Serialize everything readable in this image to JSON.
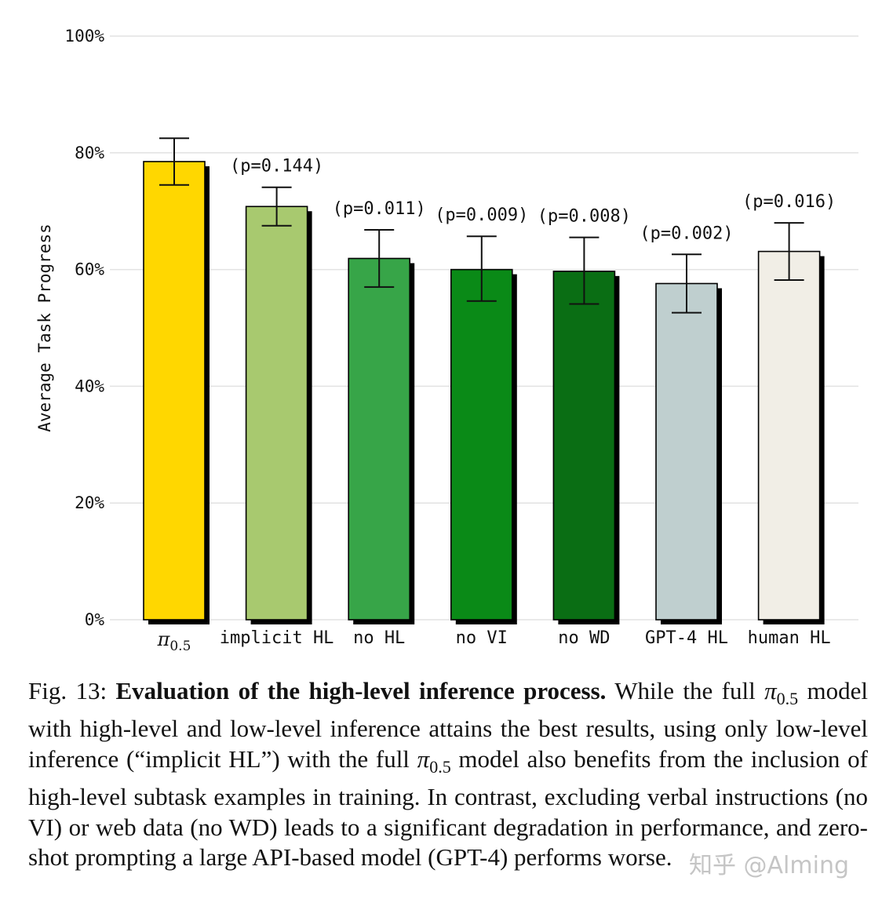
{
  "chart_data": {
    "type": "bar",
    "ylabel": "Average Task Progress",
    "ylim": [
      0,
      100
    ],
    "yticks": [
      "0%",
      "20%",
      "40%",
      "60%",
      "80%",
      "100%"
    ],
    "grid": true,
    "categories": [
      "π0.5",
      "implicit HL",
      "no HL",
      "no VI",
      "no WD",
      "GPT-4 HL",
      "human HL"
    ],
    "values": [
      78.5,
      70.8,
      61.9,
      60.0,
      59.7,
      57.6,
      63.1
    ],
    "error_low": [
      74.5,
      67.5,
      57.0,
      54.6,
      54.1,
      52.6,
      58.2
    ],
    "error_high": [
      82.5,
      74.1,
      66.8,
      65.7,
      65.5,
      62.6,
      68.0
    ],
    "annotations": [
      "",
      "(p=0.144)",
      "(p=0.011)",
      "(p=0.009)",
      "(p=0.008)",
      "(p=0.002)",
      "(p=0.016)"
    ],
    "colors": [
      "#ffd700",
      "#a8c96f",
      "#37a548",
      "#0a8a17",
      "#0a6e14",
      "#bfcfcf",
      "#f1eee6"
    ]
  },
  "caption": {
    "label": "Fig. 13:",
    "title": "Evaluation of the high-level inference process.",
    "seg1": "While the full",
    "pi": "π",
    "pi_sub": "0.5",
    "seg2": "model with high-level and low-level inference attains the best results, using only low-level inference (“implicit HL”) with the full",
    "seg3": "model also benefits from the inclusion of high-level subtask examples in training. In contrast, excluding verbal instructions (no VI) or web data (no WD) leads to a significant degradation in performance, and zero-shot prompting a large API-based model (GPT-4) performs worse."
  },
  "watermark": "知乎 @Alming"
}
